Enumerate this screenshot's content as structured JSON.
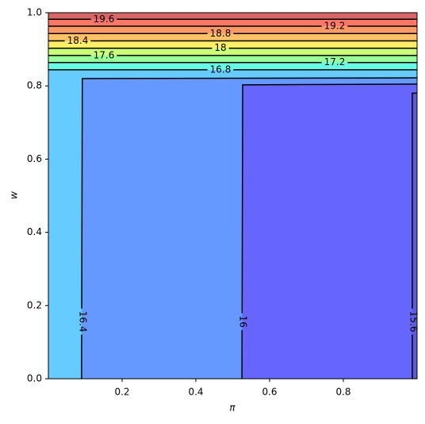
{
  "chart_data": {
    "type": "contour",
    "xlabel": "π",
    "ylabel": "w",
    "xlim": [
      0,
      1
    ],
    "ylim": [
      0,
      1
    ],
    "xticks": [
      0.2,
      0.4,
      0.6,
      0.8
    ],
    "yticks": [
      {
        "value": 0,
        "label": "0.0"
      },
      0.2,
      0.4,
      0.6,
      0.8,
      {
        "value": 1,
        "label": "1.0"
      }
    ],
    "band_colors": [
      "#5c5cd6",
      "#6666ff",
      "#6699ff",
      "#66ccff",
      "#66ffe6",
      "#99ff99",
      "#ccff77",
      "#ffee66",
      "#ffc266",
      "#ff9966",
      "#ff7766",
      "#d96666"
    ],
    "line_color": "#000000",
    "contours": [
      {
        "level": 15.6,
        "x": [
          0.987,
          0.987,
          1
        ],
        "y": [
          0,
          0.78,
          0.78
        ]
      },
      {
        "level": 16.0,
        "x": [
          0.525,
          0.527,
          1
        ],
        "y": [
          0,
          0.803,
          0.805
        ]
      },
      {
        "level": 16.4,
        "x": [
          0.09,
          0.092,
          1
        ],
        "y": [
          0,
          0.82,
          0.822
        ]
      },
      {
        "level": 16.8,
        "x": [
          0,
          1
        ],
        "y": [
          0.844,
          0.844
        ]
      },
      {
        "level": 17.2,
        "x": [
          0,
          1
        ],
        "y": [
          0.864,
          0.864
        ]
      },
      {
        "level": 17.6,
        "x": [
          0,
          1
        ],
        "y": [
          0.883,
          0.883
        ]
      },
      {
        "level": 18.0,
        "x": [
          0,
          1
        ],
        "y": [
          0.903,
          0.903
        ]
      },
      {
        "level": 18.4,
        "x": [
          0,
          1
        ],
        "y": [
          0.923,
          0.923
        ]
      },
      {
        "level": 18.8,
        "x": [
          0,
          1
        ],
        "y": [
          0.943,
          0.943
        ]
      },
      {
        "level": 19.2,
        "x": [
          0,
          1
        ],
        "y": [
          0.963,
          0.963
        ]
      },
      {
        "level": 19.6,
        "x": [
          0,
          1
        ],
        "y": [
          0.982,
          0.982
        ]
      }
    ]
  }
}
